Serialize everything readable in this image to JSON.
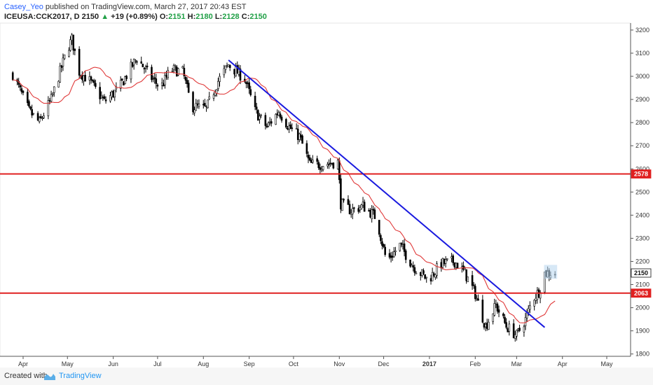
{
  "header": {
    "author": "Casey_Yeo",
    "published_text": "published on TradingView.com, March 27, 2017 20:43 EST",
    "symbol": "ICEUSA:CCK2017, D",
    "last": "2150",
    "change": "+19 (+0.89%)",
    "o_label": "O:",
    "o_val": "2151",
    "h_label": "H:",
    "h_val": "2180",
    "l_label": "L:",
    "l_val": "2128",
    "c_label": "C:",
    "c_val": "2150"
  },
  "footer": {
    "created_with": "Created with",
    "brand": "TradingView"
  },
  "colors": {
    "candle": "#000000",
    "moving_average": "#e03a3a",
    "trendline": "#1a1adf",
    "horizontal_level": "#e02020",
    "up_arrow": "#21a047",
    "highlight_box": "#bcd8f0"
  },
  "chart_data": {
    "type": "candlestick",
    "x_axis": {
      "ticks": [
        "Apr",
        "May",
        "Jun",
        "Jul",
        "Aug",
        "Sep",
        "Oct",
        "Nov",
        "Dec",
        "2017",
        "Feb",
        "Mar",
        "Apr",
        "May"
      ]
    },
    "y_axis": {
      "ticks": [
        3200,
        3100,
        3000,
        2900,
        2800,
        2700,
        2600,
        2500,
        2400,
        2300,
        2200,
        2100,
        2000,
        1900,
        1800
      ],
      "range": [
        1790,
        3230
      ]
    },
    "price_labels": [
      {
        "value": 2578,
        "label": "2578",
        "kind": "level"
      },
      {
        "value": 2150,
        "label": "2150",
        "kind": "last"
      },
      {
        "value": 2063,
        "label": "2063",
        "kind": "level"
      }
    ],
    "horizontal_lines": [
      2578,
      2063
    ],
    "trendline": {
      "from": [
        "Aug 18",
        3070
      ],
      "to": [
        "Mar 20",
        1915
      ]
    },
    "moving_average": "red line",
    "price_path": [
      [
        "Mar 25",
        3010
      ],
      [
        "Apr 5",
        2850
      ],
      [
        "Apr 12",
        2800
      ],
      [
        "Apr 20",
        2900
      ],
      [
        "May 1",
        3120
      ],
      [
        "May 4",
        3160
      ],
      [
        "May 9",
        3020
      ],
      [
        "May 16",
        2980
      ],
      [
        "May 26",
        2890
      ],
      [
        "Jun 5",
        2950
      ],
      [
        "Jun 17",
        3080
      ],
      [
        "Jun 26",
        3000
      ],
      [
        "Jul 3",
        2950
      ],
      [
        "Jul 10",
        3030
      ],
      [
        "Jul 18",
        3020
      ],
      [
        "Jul 24",
        2870
      ],
      [
        "Aug 3",
        2860
      ],
      [
        "Aug 11",
        2980
      ],
      [
        "Aug 18",
        3050
      ],
      [
        "Aug 29",
        2990
      ],
      [
        "Sep 5",
        2850
      ],
      [
        "Sep 13",
        2780
      ],
      [
        "Sep 21",
        2850
      ],
      [
        "Sep 28",
        2780
      ],
      [
        "Oct 5",
        2740
      ],
      [
        "Oct 12",
        2620
      ],
      [
        "Oct 21",
        2620
      ],
      [
        "Oct 31",
        2630
      ],
      [
        "Nov 2",
        2450
      ],
      [
        "Nov 9",
        2420
      ],
      [
        "Nov 17",
        2440
      ],
      [
        "Nov 26",
        2390
      ],
      [
        "Dec 3",
        2200
      ],
      [
        "Dec 12",
        2270
      ],
      [
        "Dec 21",
        2180
      ],
      [
        "Dec 31",
        2120
      ],
      [
        "Jan 9",
        2190
      ],
      [
        "Jan 18",
        2200
      ],
      [
        "Jan 25",
        2150
      ],
      [
        "Feb 1",
        2060
      ],
      [
        "Feb 8",
        1920
      ],
      [
        "Feb 15",
        2010
      ],
      [
        "Feb 22",
        1920
      ],
      [
        "Mar 1",
        1880
      ],
      [
        "Mar 7",
        1950
      ],
      [
        "Mar 12",
        2040
      ],
      [
        "Mar 16",
        2070
      ],
      [
        "Mar 20",
        2150
      ],
      [
        "Mar 27",
        2150
      ]
    ]
  }
}
